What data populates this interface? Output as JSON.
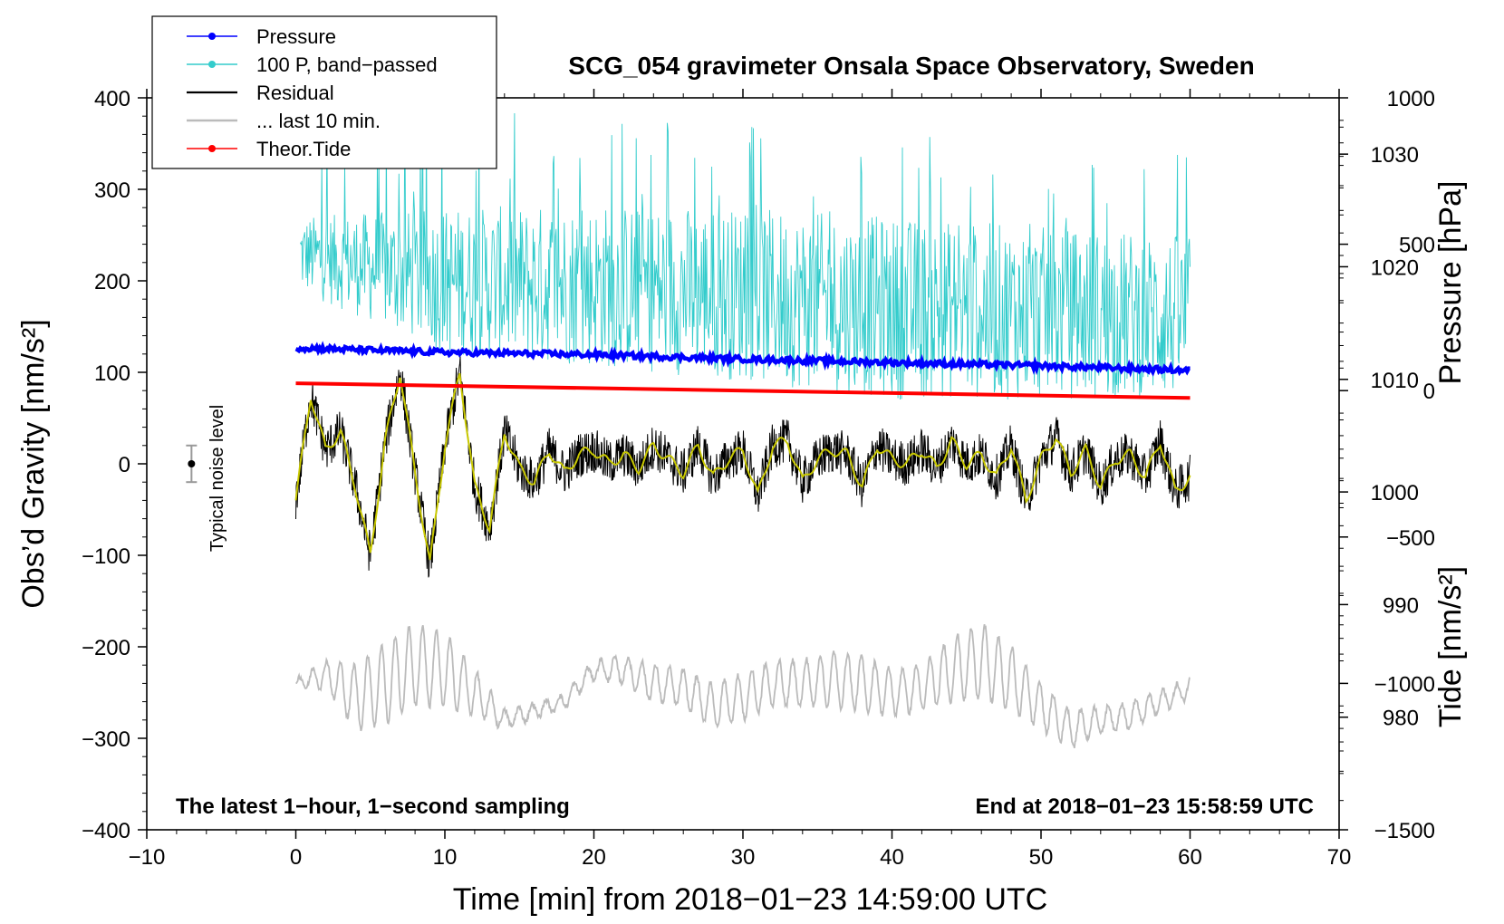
{
  "chart_data": {
    "type": "line",
    "title": "SCG_054 gravimeter Onsala Space Observatory, Sweden",
    "xlabel": "Time [min] from 2018−01−23 14:59:00 UTC",
    "ylabel_left": "Obs’d Gravity [nm/s²]",
    "ylabel_right_top": "Pressure [hPa]",
    "ylabel_right_bottom": "Tide [nm/s²]",
    "xlim": [
      -10,
      70
    ],
    "ylim_left": [
      -400,
      400
    ],
    "ylim_pressure": [
      970,
      1035
    ],
    "ylim_tide": [
      -1500,
      1000
    ],
    "x_ticks": [
      -10,
      0,
      10,
      20,
      30,
      40,
      50,
      60,
      70
    ],
    "x_tick_labels": [
      "−10",
      "0",
      "10",
      "20",
      "30",
      "40",
      "50",
      "60",
      "70"
    ],
    "y_ticks_left": [
      -400,
      -300,
      -200,
      -100,
      0,
      100,
      200,
      300,
      400
    ],
    "y_tick_labels_left": [
      "−400",
      "−300",
      "−200",
      "−100",
      "0",
      "100",
      "200",
      "300",
      "400"
    ],
    "pressure_ticks": [
      980,
      990,
      1000,
      1010,
      1020,
      1030
    ],
    "pressure_tick_labels": [
      "980",
      "990",
      "1000",
      "1010",
      "1020",
      "1030"
    ],
    "tide_ticks": [
      -1500,
      -1000,
      -500,
      0,
      500,
      1000
    ],
    "tide_tick_labels": [
      "−1500",
      "−1000",
      "−500",
      "0",
      "500",
      "1000"
    ],
    "annotations": {
      "bottom_left": "The latest 1−hour, 1−second sampling",
      "bottom_right": "End at 2018−01−23 15:58:59 UTC",
      "noise_label": "Typical noise level"
    },
    "noise_bar": {
      "x": -7,
      "center": 0,
      "half_range": 20
    },
    "legend": [
      {
        "label": "Pressure",
        "color": "#0000ff",
        "marker": true
      },
      {
        "label": "100 P, band−passed",
        "color": "#33cccc",
        "marker": true
      },
      {
        "label": "Residual",
        "color": "#000000",
        "marker": false
      },
      {
        "label": "... last 10 min.",
        "color": "#bbbbbb",
        "marker": false
      },
      {
        "label": "Theor.Tide",
        "color": "#ff0000",
        "marker": true
      }
    ],
    "series": [
      {
        "name": "Pressure",
        "axis": "pressure",
        "color": "#0000ff",
        "x": [
          0,
          10,
          20,
          30,
          40,
          50,
          60
        ],
        "values": [
          1012.8,
          1012.4,
          1012.2,
          1011.8,
          1011.5,
          1011.2,
          1010.8
        ]
      },
      {
        "name": "100 P, band−passed",
        "axis": "left",
        "color": "#33cccc",
        "x": [
          0,
          10,
          20,
          30,
          40,
          50,
          60
        ],
        "values": [
          230,
          200,
          195,
          185,
          170,
          165,
          160
        ],
        "spread": [
          40,
          80,
          90,
          95,
          100,
          95,
          90
        ]
      },
      {
        "name": "Residual",
        "axis": "left",
        "color": "#000000",
        "x": [
          0,
          1,
          2,
          3,
          4,
          5,
          6,
          7,
          8,
          9,
          10,
          11,
          12,
          13,
          14,
          15,
          16,
          17,
          18,
          19,
          20,
          21,
          22,
          23,
          24,
          25,
          26,
          27,
          28,
          29,
          30,
          31,
          32,
          33,
          34,
          35,
          36,
          37,
          38,
          39,
          40,
          41,
          42,
          43,
          44,
          45,
          46,
          47,
          48,
          49,
          50,
          51,
          52,
          53,
          54,
          55,
          56,
          57,
          58,
          59,
          60
        ],
        "values": [
          -40,
          75,
          15,
          35,
          -25,
          -100,
          25,
          100,
          -10,
          -110,
          20,
          100,
          -25,
          -70,
          35,
          -5,
          -20,
          15,
          -10,
          10,
          15,
          0,
          10,
          -5,
          20,
          5,
          -10,
          20,
          -15,
          5,
          15,
          -35,
          20,
          25,
          -20,
          5,
          15,
          10,
          -25,
          20,
          5,
          0,
          15,
          -5,
          25,
          0,
          10,
          -15,
          20,
          -40,
          5,
          30,
          -10,
          15,
          -25,
          5,
          10,
          -15,
          25,
          -30,
          -15
        ],
        "noise_amplitude": 25
      },
      {
        "name": "... last 10 min.",
        "axis": "left",
        "color": "#bbbbbb",
        "x": [
          0,
          2,
          4,
          6,
          8,
          10,
          12,
          14,
          16,
          18,
          20,
          22,
          24,
          26,
          28,
          30,
          32,
          34,
          36,
          38,
          40,
          42,
          44,
          46,
          48,
          50,
          52,
          54,
          56,
          58,
          60
        ],
        "values": [
          -240,
          -230,
          -255,
          -240,
          -220,
          -225,
          -250,
          -280,
          -270,
          -260,
          -225,
          -225,
          -240,
          -245,
          -265,
          -255,
          -240,
          -240,
          -235,
          -240,
          -250,
          -245,
          -225,
          -215,
          -235,
          -265,
          -290,
          -280,
          -275,
          -260,
          -245
        ],
        "oscillation_amplitude": [
          5,
          15,
          35,
          45,
          45,
          40,
          25,
          10,
          8,
          8,
          10,
          15,
          20,
          20,
          25,
          25,
          25,
          25,
          30,
          30,
          25,
          25,
          35,
          40,
          35,
          25,
          20,
          15,
          15,
          12,
          10
        ]
      },
      {
        "name": "Theor.Tide",
        "axis": "tide",
        "color": "#ff0000",
        "x": [
          0,
          60
        ],
        "values": [
          25,
          -25
        ]
      }
    ]
  }
}
